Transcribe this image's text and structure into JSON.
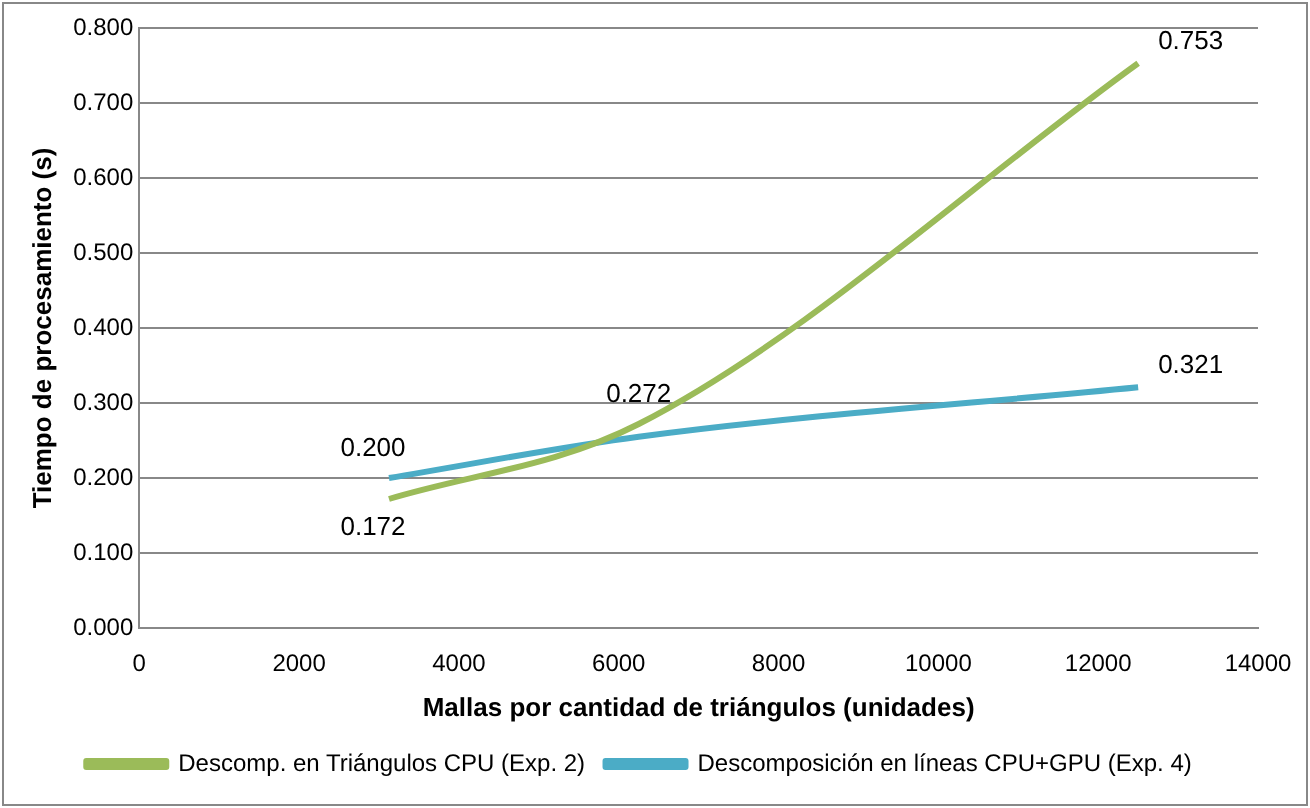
{
  "chart_data": {
    "type": "line",
    "xlabel": "Mallas por cantidad de triángulos (unidades)",
    "ylabel": "Tiempo de procesamiento (s)",
    "xlim": [
      0,
      14000
    ],
    "xticks": [
      0,
      2000,
      4000,
      6000,
      8000,
      10000,
      12000,
      14000
    ],
    "ylim": [
      0,
      0.8
    ],
    "yticks": [
      {
        "value": 0,
        "label": "0.000"
      },
      {
        "value": 0.1,
        "label": "0.100"
      },
      {
        "value": 0.2,
        "label": "0.200"
      },
      {
        "value": 0.3,
        "label": "0.300"
      },
      {
        "value": 0.4,
        "label": "0.400"
      },
      {
        "value": 0.5,
        "label": "0.500"
      },
      {
        "value": 0.6,
        "label": "0.600"
      },
      {
        "value": 0.7,
        "label": "0.700"
      },
      {
        "value": 0.8,
        "label": "0.800"
      }
    ],
    "grid": "y",
    "legend": "bottom",
    "marker": "none",
    "line_style": "solid",
    "series": [
      {
        "name": "Descomp. en Triángulos CPU (Exp. 2)",
        "color": "#9bbb59",
        "x": [
          3125,
          6250,
          12500
        ],
        "values": [
          0.172,
          0.272,
          0.753
        ],
        "value_labels": [
          "0.172",
          "0.272",
          "0.753"
        ]
      },
      {
        "name": "Descomposición en líneas CPU+GPU (Exp. 4)",
        "color": "#4bacc6",
        "x": [
          3125,
          6250,
          12500
        ],
        "values": [
          0.2,
          0.255,
          0.321
        ],
        "value_labels": [
          "0.200",
          null,
          "0.321"
        ]
      }
    ]
  }
}
